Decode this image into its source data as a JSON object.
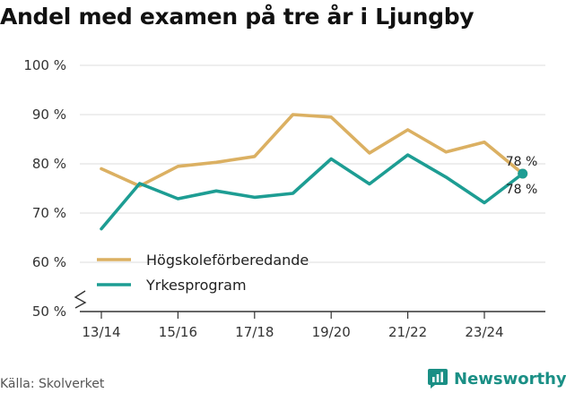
{
  "chart_data": {
    "type": "line",
    "title": "Andel med examen på tre år i Ljungby",
    "xlabel": "",
    "ylabel": "",
    "x": [
      "13/14",
      "14/15",
      "15/16",
      "16/17",
      "17/18",
      "18/19",
      "19/20",
      "20/21",
      "21/22",
      "22/23",
      "23/24",
      "24/25"
    ],
    "xtick_labels": [
      "13/14",
      "15/16",
      "17/18",
      "19/20",
      "21/22",
      "23/24"
    ],
    "ytick_labels": [
      "50 %",
      "60 %",
      "70 %",
      "80 %",
      "90 %",
      "100 %"
    ],
    "ylim": [
      50,
      100
    ],
    "yticks": [
      50,
      60,
      70,
      80,
      90,
      100
    ],
    "y_axis_break": true,
    "grid": true,
    "legend_position": "lower-left",
    "series": [
      {
        "name": "Högskoleförberedande",
        "color": "#dbb062",
        "values": [
          79,
          75.5,
          79.5,
          80.3,
          81.5,
          90,
          89.5,
          82.2,
          86.9,
          82.4,
          84.4,
          78
        ],
        "end_label": "78 %"
      },
      {
        "name": "Yrkesprogram",
        "color": "#1d9d93",
        "values": [
          66.8,
          76,
          72.9,
          74.5,
          73.2,
          74,
          81,
          75.9,
          81.8,
          77.3,
          72.1,
          78
        ],
        "end_label": "78 %"
      }
    ]
  },
  "footer": {
    "source": "Källa: Skolverket",
    "brand": "Newsworthy",
    "brand_icon": "newsworthy-logo-icon",
    "brand_color": "#1a8f85"
  }
}
